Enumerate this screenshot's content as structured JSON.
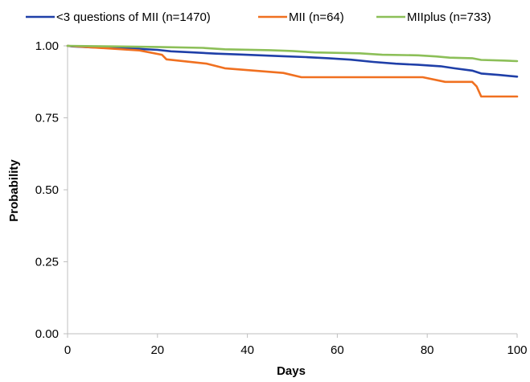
{
  "chart_data": {
    "type": "line",
    "title": "",
    "xlabel": "Days",
    "ylabel": "Probability",
    "xlim": [
      0,
      100
    ],
    "ylim": [
      0,
      1
    ],
    "x_ticks": [
      0,
      20,
      40,
      60,
      80,
      100
    ],
    "x_tick_labels": [
      "0",
      "20",
      "40",
      "60",
      "80",
      "100"
    ],
    "y_ticks": [
      0,
      0.25,
      0.5,
      0.75,
      1
    ],
    "y_tick_labels": [
      "0.00",
      "0.25",
      "0.50",
      "0.75",
      "1.00"
    ],
    "grid": false,
    "legend_position": "top",
    "series": [
      {
        "name": "<3 questions of MII (n=1470)",
        "color": "#1f3fa8",
        "x": [
          0,
          1,
          5,
          10,
          15,
          20,
          23,
          28,
          33,
          38,
          43,
          48,
          53,
          58,
          63,
          68,
          73,
          78,
          83,
          86,
          90,
          92,
          96,
          100
        ],
        "y": [
          1.0,
          0.998,
          0.995,
          0.993,
          0.99,
          0.986,
          0.981,
          0.977,
          0.973,
          0.97,
          0.967,
          0.964,
          0.961,
          0.957,
          0.952,
          0.944,
          0.938,
          0.934,
          0.929,
          0.922,
          0.914,
          0.904,
          0.899,
          0.893
        ]
      },
      {
        "name": "MII (n=64)",
        "color": "#f07020",
        "x": [
          0,
          16,
          21,
          22,
          31,
          35,
          48,
          52,
          79,
          84,
          90,
          91,
          92,
          100
        ],
        "y": [
          1.0,
          0.984,
          0.969,
          0.953,
          0.938,
          0.922,
          0.906,
          0.891,
          0.891,
          0.875,
          0.875,
          0.859,
          0.824,
          0.824
        ]
      },
      {
        "name": "MIIplus (n=733)",
        "color": "#8cbf58",
        "x": [
          0,
          10,
          20,
          30,
          35,
          45,
          50,
          55,
          65,
          70,
          78,
          82,
          85,
          90,
          92,
          97,
          100
        ],
        "y": [
          1.0,
          0.998,
          0.996,
          0.993,
          0.988,
          0.985,
          0.982,
          0.977,
          0.974,
          0.969,
          0.967,
          0.963,
          0.959,
          0.957,
          0.951,
          0.949,
          0.947
        ]
      }
    ]
  }
}
